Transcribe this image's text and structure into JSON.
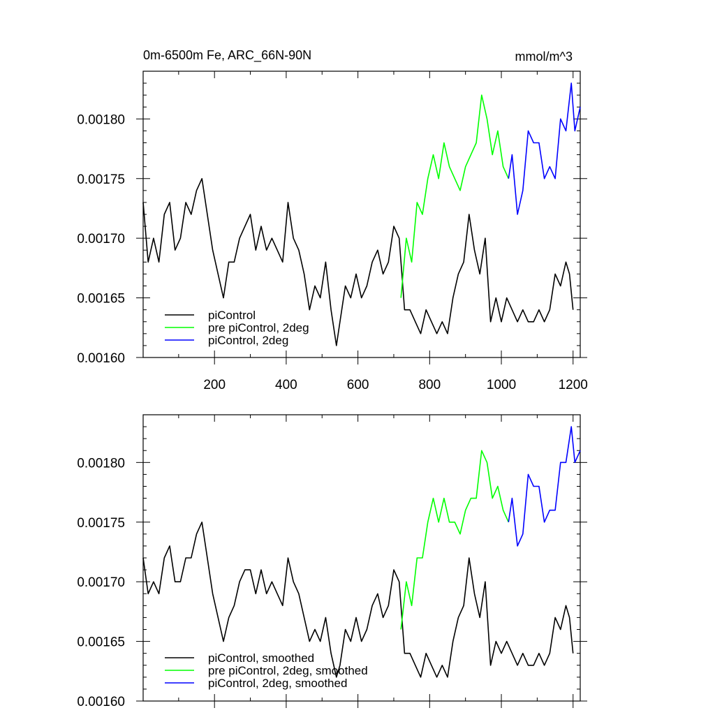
{
  "chart_data": [
    {
      "type": "line",
      "title": "0m-6500m Fe, ARC_66N-90N",
      "units": "mmol/m^3",
      "xlabel": "",
      "ylabel": "",
      "xlim": [
        1,
        1220
      ],
      "ylim": [
        0.0016,
        0.00184
      ],
      "x_ticks": [
        200,
        400,
        600,
        800,
        1000,
        1200
      ],
      "x_tick_labels": [
        "200",
        "400",
        "600",
        "800",
        "1000",
        "1200"
      ],
      "y_ticks": [
        0.0016,
        0.00165,
        0.0017,
        0.00175,
        0.0018
      ],
      "y_tick_labels": [
        "0.00160",
        "0.00165",
        "0.00170",
        "0.00175",
        "0.00180"
      ],
      "grid": false,
      "legend_position": "bottom-left",
      "series": [
        {
          "name": "piControl",
          "color": "#000000",
          "x": [
            1,
            15,
            30,
            45,
            60,
            75,
            90,
            105,
            120,
            135,
            150,
            165,
            180,
            195,
            210,
            225,
            240,
            255,
            270,
            285,
            300,
            315,
            330,
            345,
            360,
            375,
            390,
            405,
            420,
            435,
            450,
            465,
            480,
            495,
            510,
            525,
            540,
            550,
            565,
            580,
            595,
            610,
            625,
            640,
            655,
            670,
            685,
            700,
            715,
            730,
            745,
            760,
            775,
            790,
            805,
            820,
            835,
            850,
            865,
            880,
            895,
            910,
            925,
            940,
            955,
            970,
            985,
            1000,
            1015,
            1030,
            1045,
            1060,
            1075,
            1090,
            1105,
            1120,
            1135,
            1150,
            1165,
            1180,
            1190,
            1200
          ],
          "values": [
            0.00173,
            0.00168,
            0.0017,
            0.00168,
            0.00172,
            0.00173,
            0.00169,
            0.0017,
            0.00173,
            0.00172,
            0.00174,
            0.00175,
            0.00172,
            0.00169,
            0.00167,
            0.00165,
            0.00168,
            0.00168,
            0.0017,
            0.00171,
            0.00172,
            0.00169,
            0.00171,
            0.00169,
            0.0017,
            0.00169,
            0.00168,
            0.00173,
            0.0017,
            0.00169,
            0.00167,
            0.00164,
            0.00166,
            0.00165,
            0.00168,
            0.00164,
            0.00161,
            0.00163,
            0.00166,
            0.00165,
            0.00167,
            0.00165,
            0.00166,
            0.00168,
            0.00169,
            0.00167,
            0.00168,
            0.00171,
            0.0017,
            0.00164,
            0.00164,
            0.00163,
            0.00162,
            0.00164,
            0.00163,
            0.00162,
            0.00163,
            0.00162,
            0.00165,
            0.00167,
            0.00168,
            0.00172,
            0.00169,
            0.00167,
            0.0017,
            0.00163,
            0.00165,
            0.00163,
            0.00165,
            0.00164,
            0.00163,
            0.00164,
            0.00163,
            0.00163,
            0.00164,
            0.00163,
            0.00164,
            0.00167,
            0.00166,
            0.00168,
            0.00167,
            0.00164
          ]
        },
        {
          "name": "pre piControl, 2deg",
          "color": "#00ff00",
          "x": [
            720,
            735,
            750,
            765,
            780,
            795,
            810,
            825,
            840,
            855,
            870,
            885,
            900,
            915,
            930,
            945,
            960,
            975,
            990,
            1005,
            1020
          ],
          "values": [
            0.00165,
            0.0017,
            0.00168,
            0.00173,
            0.00172,
            0.00175,
            0.00177,
            0.00175,
            0.00178,
            0.00176,
            0.00175,
            0.00174,
            0.00176,
            0.00177,
            0.00178,
            0.00182,
            0.0018,
            0.00177,
            0.00179,
            0.00176,
            0.00175
          ]
        },
        {
          "name": "piControl, 2deg",
          "color": "#0000ff",
          "x": [
            1020,
            1030,
            1045,
            1060,
            1075,
            1090,
            1105,
            1120,
            1135,
            1150,
            1165,
            1180,
            1195,
            1205,
            1220
          ],
          "values": [
            0.00175,
            0.00177,
            0.00172,
            0.00174,
            0.00179,
            0.00178,
            0.00178,
            0.00175,
            0.00176,
            0.00175,
            0.0018,
            0.00179,
            0.00183,
            0.00179,
            0.00181
          ]
        }
      ]
    },
    {
      "type": "line",
      "title": "",
      "xlabel": "",
      "ylabel": "",
      "xlim": [
        1,
        1220
      ],
      "ylim": [
        0.0016,
        0.00184
      ],
      "x_ticks": [
        200,
        400,
        600,
        800,
        1000,
        1200
      ],
      "y_ticks": [
        0.0016,
        0.00165,
        0.0017,
        0.00175,
        0.0018
      ],
      "y_tick_labels": [
        "0.00160",
        "0.00165",
        "0.00170",
        "0.00175",
        "0.00180"
      ],
      "grid": false,
      "legend_position": "bottom-left",
      "series": [
        {
          "name": "piControl, smoothed",
          "color": "#000000",
          "x": [
            1,
            15,
            30,
            45,
            60,
            75,
            90,
            105,
            120,
            135,
            150,
            165,
            180,
            195,
            210,
            225,
            240,
            255,
            270,
            285,
            300,
            315,
            330,
            345,
            360,
            375,
            390,
            405,
            420,
            435,
            450,
            465,
            480,
            495,
            510,
            525,
            540,
            550,
            565,
            580,
            595,
            610,
            625,
            640,
            655,
            670,
            685,
            700,
            715,
            730,
            745,
            760,
            775,
            790,
            805,
            820,
            835,
            850,
            865,
            880,
            895,
            910,
            925,
            940,
            955,
            970,
            985,
            1000,
            1015,
            1030,
            1045,
            1060,
            1075,
            1090,
            1105,
            1120,
            1135,
            1150,
            1165,
            1180,
            1190,
            1200
          ],
          "values": [
            0.00172,
            0.00169,
            0.0017,
            0.00169,
            0.00172,
            0.00173,
            0.0017,
            0.0017,
            0.00172,
            0.00172,
            0.00174,
            0.00175,
            0.00172,
            0.00169,
            0.00167,
            0.00165,
            0.00167,
            0.00168,
            0.0017,
            0.00171,
            0.00171,
            0.00169,
            0.00171,
            0.00169,
            0.0017,
            0.00169,
            0.00168,
            0.00172,
            0.0017,
            0.00169,
            0.00167,
            0.00165,
            0.00166,
            0.00165,
            0.00167,
            0.00164,
            0.00162,
            0.00163,
            0.00166,
            0.00165,
            0.00167,
            0.00165,
            0.00166,
            0.00168,
            0.00169,
            0.00167,
            0.00168,
            0.00171,
            0.0017,
            0.00164,
            0.00164,
            0.00163,
            0.00162,
            0.00164,
            0.00163,
            0.00162,
            0.00163,
            0.00162,
            0.00165,
            0.00167,
            0.00168,
            0.00172,
            0.00169,
            0.00167,
            0.0017,
            0.00163,
            0.00165,
            0.00164,
            0.00165,
            0.00164,
            0.00163,
            0.00164,
            0.00163,
            0.00163,
            0.00164,
            0.00163,
            0.00164,
            0.00167,
            0.00166,
            0.00168,
            0.00167,
            0.00164
          ]
        },
        {
          "name": "pre piControl, 2deg, smoothed",
          "color": "#00ff00",
          "x": [
            720,
            735,
            750,
            765,
            780,
            795,
            810,
            825,
            840,
            855,
            870,
            885,
            900,
            915,
            930,
            945,
            960,
            975,
            990,
            1005,
            1020
          ],
          "values": [
            0.00166,
            0.0017,
            0.00168,
            0.00172,
            0.00172,
            0.00175,
            0.00177,
            0.00175,
            0.00177,
            0.00175,
            0.00175,
            0.00174,
            0.00176,
            0.00177,
            0.00177,
            0.00181,
            0.0018,
            0.00177,
            0.00178,
            0.00176,
            0.00175
          ]
        },
        {
          "name": "piControl, 2deg, smoothed",
          "color": "#0000ff",
          "x": [
            1020,
            1030,
            1045,
            1060,
            1075,
            1090,
            1105,
            1120,
            1135,
            1150,
            1165,
            1180,
            1195,
            1205,
            1220
          ],
          "values": [
            0.00175,
            0.00177,
            0.00173,
            0.00174,
            0.00179,
            0.00178,
            0.00178,
            0.00175,
            0.00176,
            0.00176,
            0.0018,
            0.0018,
            0.00183,
            0.0018,
            0.00181
          ]
        }
      ]
    }
  ]
}
